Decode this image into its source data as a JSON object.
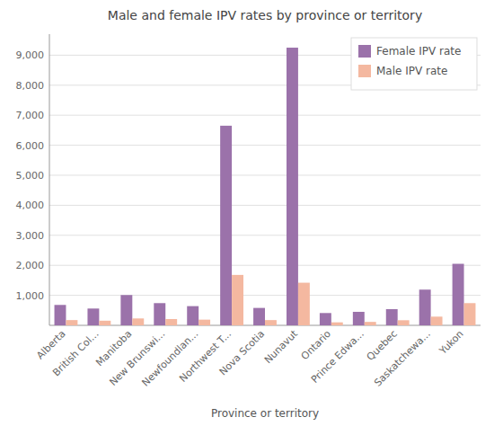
{
  "chart_data": {
    "type": "bar",
    "title": "Male and female IPV rates by province or territory",
    "x_label": "Province or territory",
    "categories": [
      "Alberta",
      "British Col...",
      "Manitoba",
      "New Brunswi...",
      "Newfoundlan...",
      "Northwest T...",
      "Nova Scotia",
      "Nunavut",
      "Ontario",
      "Prince Edwa...",
      "Quebec",
      "Saskatchewa...",
      "Yukon"
    ],
    "series": [
      {
        "name": "Female IPV rate",
        "color": "#9B72AA",
        "values": [
          680,
          560,
          1010,
          740,
          640,
          6650,
          580,
          9250,
          410,
          450,
          540,
          1190,
          2050
        ]
      },
      {
        "name": "Male IPV rate",
        "color": "#F4B8A0",
        "values": [
          175,
          155,
          230,
          210,
          190,
          1680,
          175,
          1420,
          100,
          115,
          170,
          290,
          740
        ]
      }
    ],
    "ylim": [
      0,
      9700
    ],
    "yticks": [
      {
        "value": 1000,
        "label": "1,000"
      },
      {
        "value": 2000,
        "label": "2,000"
      },
      {
        "value": 3000,
        "label": "3,000"
      },
      {
        "value": 4000,
        "label": "4,000"
      },
      {
        "value": 5000,
        "label": "5,000"
      },
      {
        "value": 6000,
        "label": "6,000"
      },
      {
        "value": 7000,
        "label": "7,000"
      },
      {
        "value": 8000,
        "label": "8,000"
      },
      {
        "value": 9000,
        "label": "9,000"
      }
    ],
    "grid": true,
    "legend": "upper right"
  }
}
